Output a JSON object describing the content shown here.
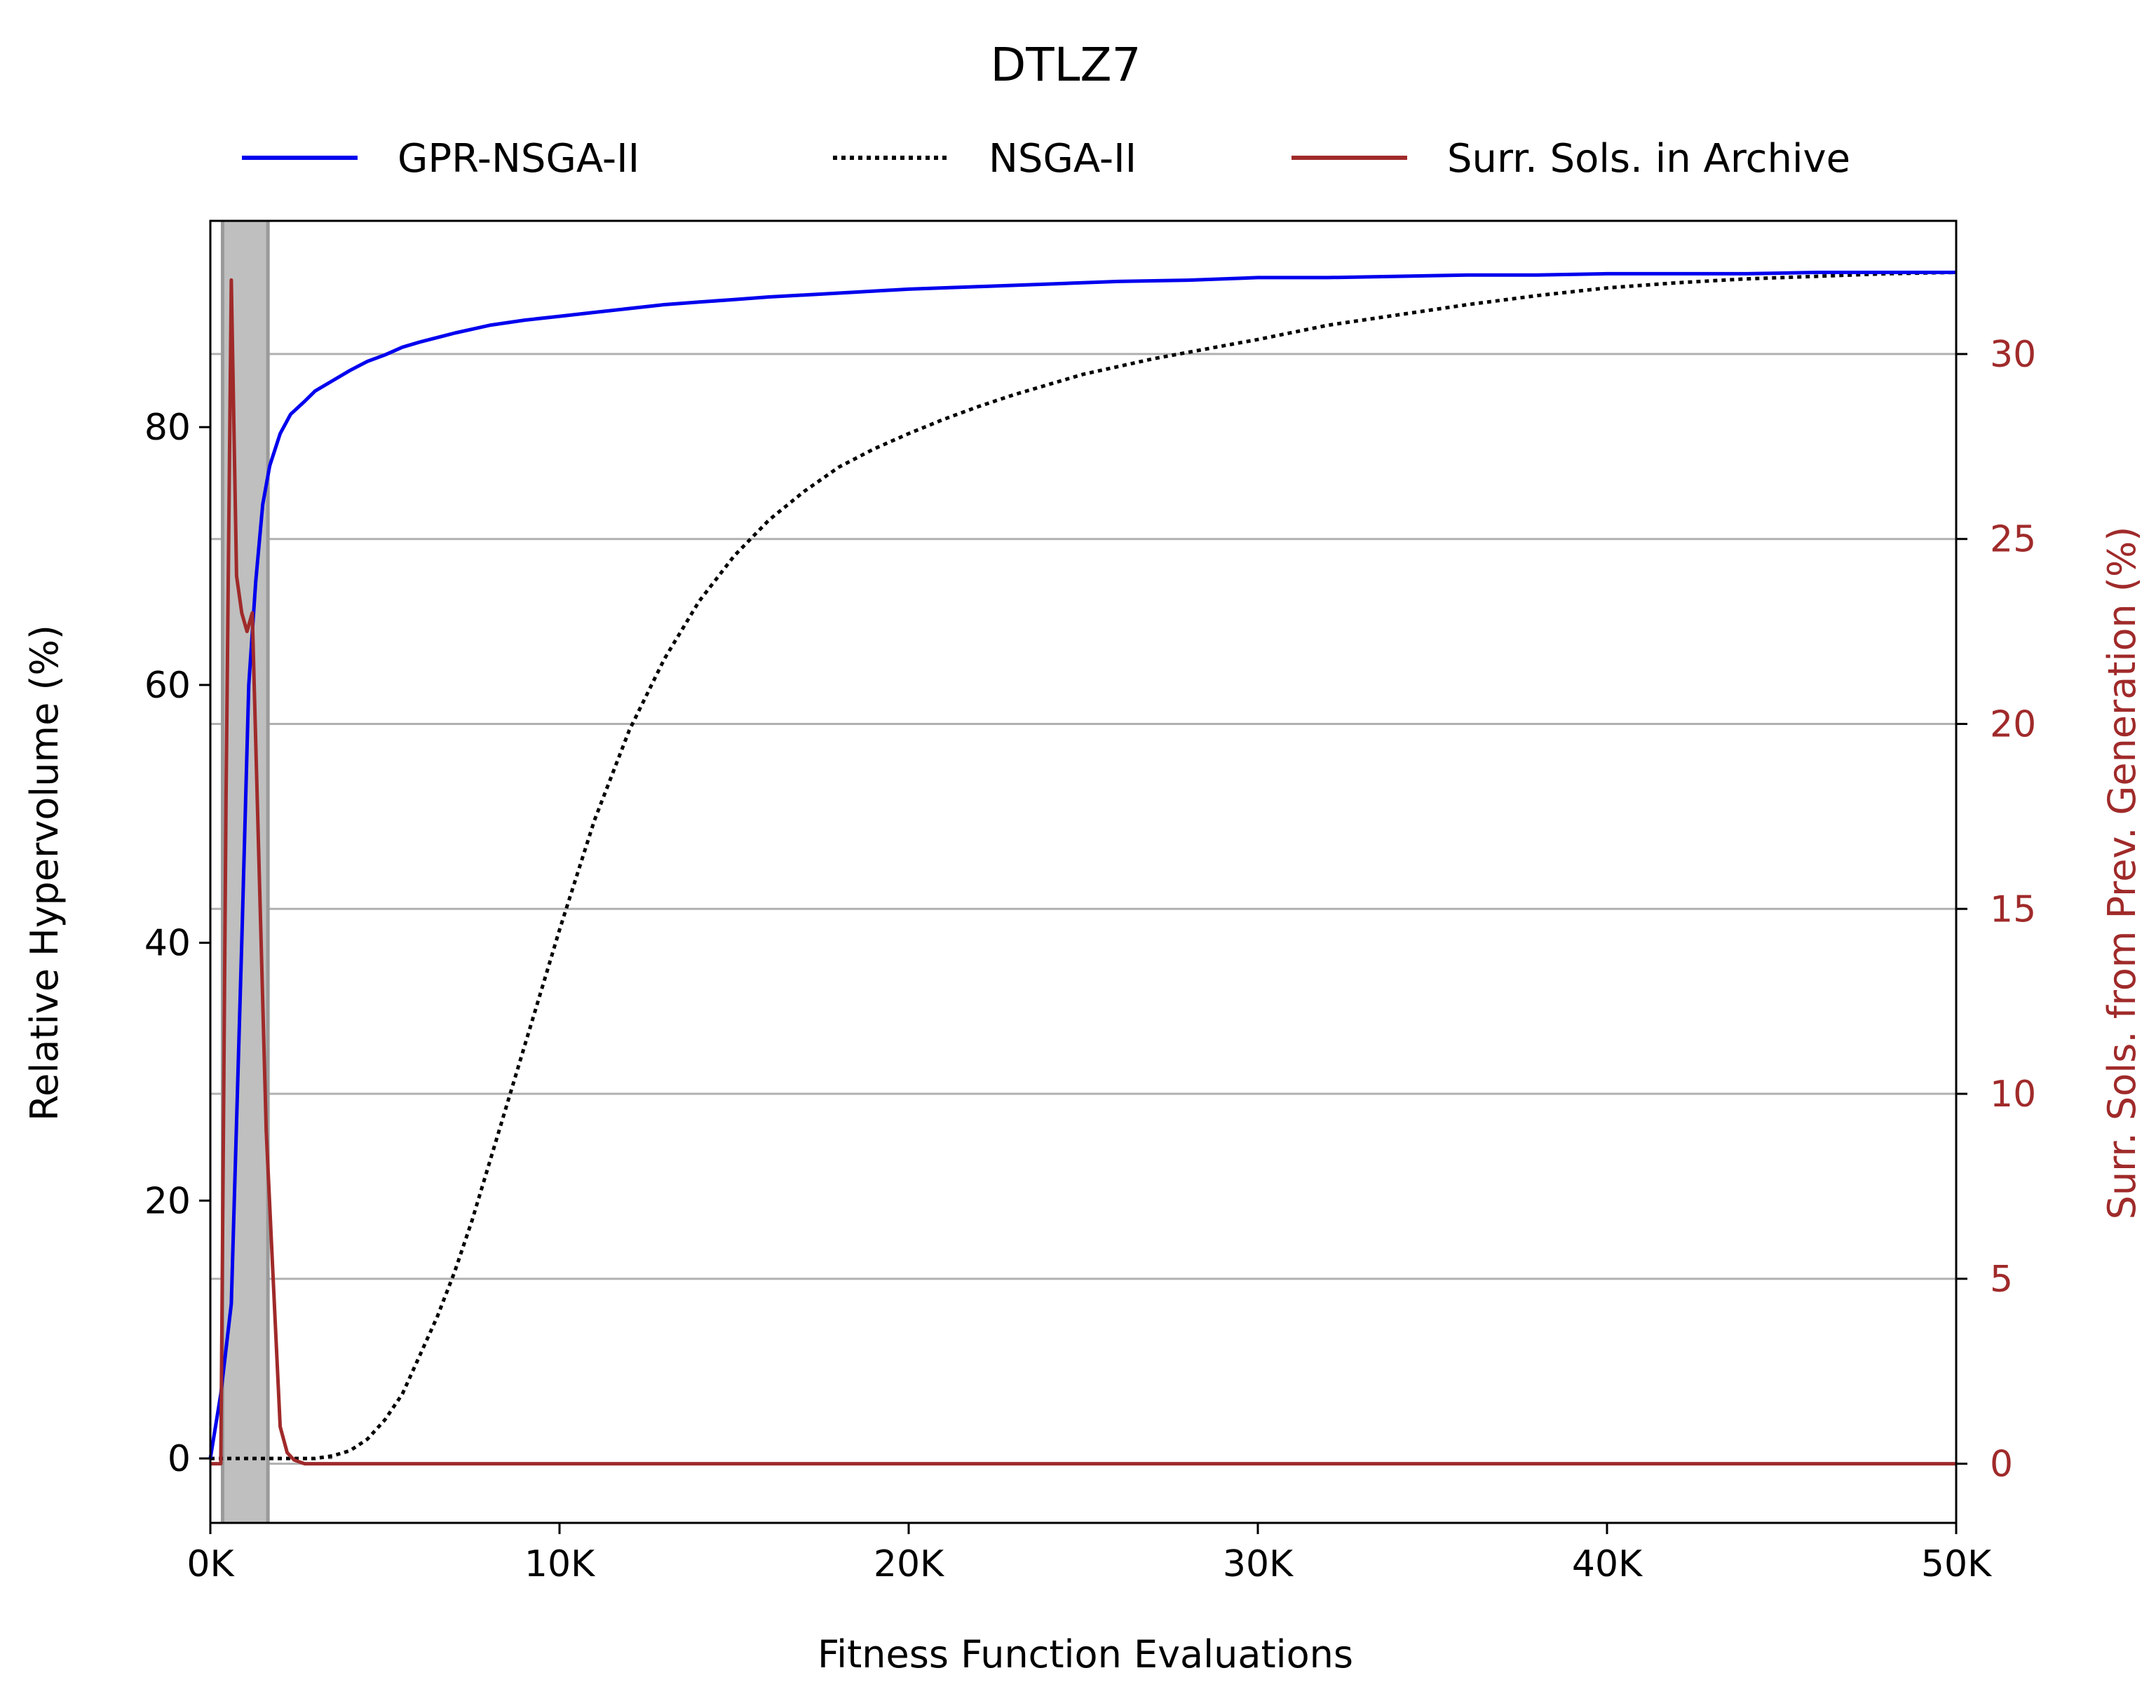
{
  "chart_data": {
    "type": "line",
    "title": "DTLZ7",
    "xlabel": "Fitness Function Evaluations",
    "ylabel": "Relative Hypervolume (%)",
    "y2label": "Surr. Sols. from Prev. Generation (%)",
    "xlim": [
      0,
      50000
    ],
    "ylim": [
      -5,
      96
    ],
    "y2lim": [
      -1.6,
      33.6
    ],
    "x_ticks": [
      0,
      10000,
      20000,
      30000,
      40000,
      50000
    ],
    "x_tick_labels": [
      "0K",
      "10K",
      "20K",
      "30K",
      "40K",
      "50K"
    ],
    "y_ticks": [
      0,
      20,
      40,
      60,
      80
    ],
    "y_tick_labels": [
      "0",
      "20",
      "40",
      "60",
      "80"
    ],
    "y2_ticks": [
      0,
      5,
      10,
      15,
      20,
      25,
      30
    ],
    "y2_tick_labels": [
      "0",
      "5",
      "10",
      "15",
      "20",
      "25",
      "30"
    ],
    "grid": "horizontal, right axis",
    "legend_position": "top, above plot",
    "shaded_region": {
      "x_start": 350,
      "x_end": 1650
    },
    "series": [
      {
        "name": "GPR-NSGA-II",
        "axis": "left",
        "color": "#0000ee",
        "style": "solid",
        "x": [
          0,
          300,
          600,
          900,
          1100,
          1300,
          1500,
          1700,
          2000,
          2300,
          2700,
          3000,
          3500,
          4000,
          4500,
          5000,
          5500,
          6000,
          7000,
          8000,
          9000,
          10000,
          11000,
          12000,
          13000,
          14000,
          15000,
          16000,
          18000,
          20000,
          22000,
          24000,
          26000,
          28000,
          30000,
          32000,
          34000,
          36000,
          38000,
          40000,
          42000,
          44000,
          46000,
          48000,
          50000
        ],
        "values": [
          0,
          5,
          12,
          40,
          60,
          68,
          74,
          77,
          79.5,
          81,
          82,
          82.8,
          83.6,
          84.4,
          85.1,
          85.6,
          86.2,
          86.6,
          87.3,
          87.9,
          88.3,
          88.6,
          88.9,
          89.2,
          89.5,
          89.7,
          89.9,
          90.1,
          90.4,
          90.7,
          90.9,
          91.1,
          91.3,
          91.4,
          91.6,
          91.6,
          91.7,
          91.8,
          91.8,
          91.9,
          91.9,
          91.9,
          92.0,
          92.0,
          92.0
        ]
      },
      {
        "name": "NSGA-II",
        "axis": "left",
        "color": "#000000",
        "style": "dotted",
        "x": [
          0,
          3000,
          3500,
          4000,
          4500,
          5000,
          5500,
          6000,
          6500,
          7000,
          7500,
          8000,
          8500,
          9000,
          9500,
          10000,
          11000,
          12000,
          13000,
          14000,
          15000,
          16000,
          17000,
          18000,
          19000,
          20000,
          21000,
          22000,
          23000,
          24000,
          25000,
          26000,
          27000,
          28000,
          29000,
          30000,
          32000,
          34000,
          36000,
          38000,
          40000,
          42000,
          44000,
          46000,
          48000,
          50000
        ],
        "values": [
          0,
          0,
          0.2,
          0.6,
          1.5,
          3,
          5,
          8,
          11,
          14.5,
          18.5,
          23,
          27.5,
          32,
          36.5,
          41,
          49.5,
          56.5,
          62,
          66.5,
          70,
          72.8,
          75,
          76.9,
          78.3,
          79.5,
          80.6,
          81.6,
          82.5,
          83.3,
          84.1,
          84.7,
          85.3,
          85.8,
          86.3,
          86.8,
          87.9,
          88.7,
          89.5,
          90.2,
          90.8,
          91.2,
          91.5,
          91.7,
          91.9,
          92.0
        ]
      },
      {
        "name": "Surr. Sols. in Archive",
        "axis": "right",
        "color": "#a02a2a",
        "style": "solid",
        "x": [
          0,
          300,
          450,
          600,
          750,
          900,
          1050,
          1200,
          1400,
          1600,
          1800,
          2000,
          2200,
          2400,
          2700,
          3000,
          3500,
          50000
        ],
        "values": [
          0,
          0,
          18,
          32,
          24,
          23,
          22.5,
          23,
          16,
          9,
          5,
          1,
          0.3,
          0.1,
          0,
          0,
          0,
          0
        ]
      }
    ]
  }
}
